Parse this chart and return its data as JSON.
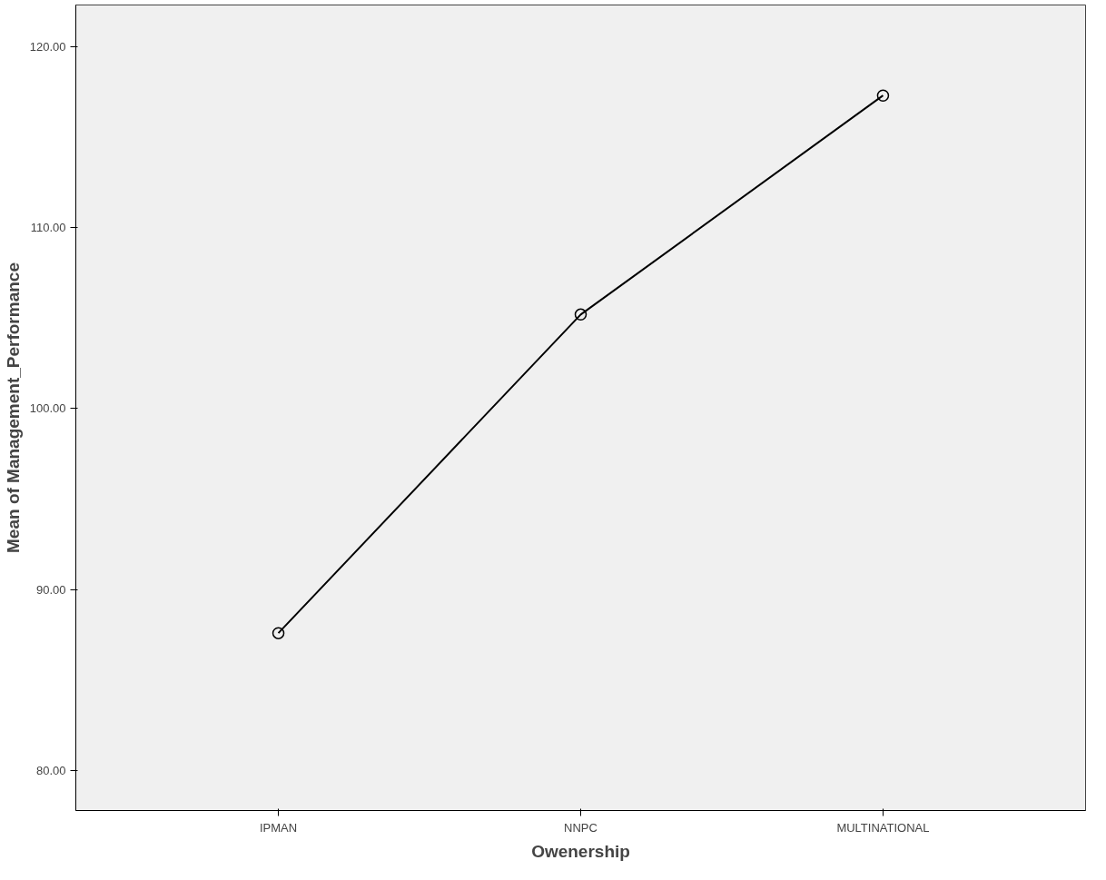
{
  "chart_data": {
    "type": "line",
    "xlabel": "Owenership",
    "ylabel": "Mean of Management_Performance",
    "categories": [
      "IPMAN",
      "NNPC",
      "MULTINATIONAL"
    ],
    "series": [
      {
        "color": "#000000",
        "values": [
          87.6,
          105.2,
          117.3
        ]
      }
    ],
    "ylim": [
      77.8,
      122.3
    ],
    "yticks": [
      {
        "value": 80,
        "label": "80.00"
      },
      {
        "value": 90,
        "label": "90.00"
      },
      {
        "value": 100,
        "label": "100.00"
      },
      {
        "value": 110,
        "label": "110.00"
      },
      {
        "value": 120,
        "label": "120.00"
      }
    ],
    "grid": false,
    "marker": "circle",
    "line_style": "solid"
  }
}
